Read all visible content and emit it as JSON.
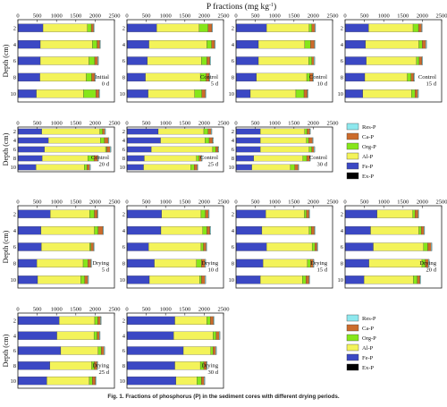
{
  "figure": {
    "title_main": "P fractions (mg kg",
    "title_sup": "-1",
    "title_end": ")",
    "ylabel": "Depth (cm)",
    "caption": "Fig. 1.  Fractions of phosphorus (P) in the sediment cores with different drying periods."
  },
  "fraction_colors": {
    "Res-P": "#8ee8ee",
    "Ca-P": "#cc6b2b",
    "Org-P": "#86e61a",
    "Al-P": "#f3f35a",
    "Fe-P": "#3b48c4",
    "Ex-P": "#000000"
  },
  "chart_data": {
    "type": "bar",
    "orientation": "horizontal",
    "stacked": true,
    "x_unit": "mg kg-1",
    "xlim": [
      0,
      2500
    ],
    "x_ticks": [
      "0",
      "500",
      "1000",
      "1500",
      "2000",
      "2500"
    ],
    "depths": [
      "2",
      "4",
      "6",
      "8",
      "10"
    ],
    "fraction_order": [
      "Ex-P",
      "Fe-P",
      "Al-P",
      "Org-P",
      "Ca-P",
      "Res-P"
    ],
    "legend_labels": [
      "Res-P",
      "Ca-P",
      "Org-P",
      "Al-P",
      "Fe-P",
      "Ex-P"
    ],
    "panels": [
      {
        "label1": "Initial",
        "label2": "0 d",
        "data": [
          [
            10,
            640,
            1150,
            100,
            60,
            20
          ],
          [
            10,
            570,
            1350,
            120,
            70,
            20
          ],
          [
            10,
            570,
            1260,
            150,
            80,
            20
          ],
          [
            10,
            560,
            1200,
            140,
            80,
            20
          ],
          [
            10,
            470,
            1220,
            320,
            80,
            20
          ]
        ]
      },
      {
        "label1": "Control",
        "label2": "5 d",
        "data": [
          [
            10,
            760,
            1100,
            230,
            100,
            20
          ],
          [
            10,
            560,
            1500,
            120,
            80,
            20
          ],
          [
            10,
            520,
            1400,
            140,
            80,
            20
          ],
          [
            10,
            470,
            1420,
            150,
            80,
            20
          ],
          [
            10,
            540,
            1200,
            190,
            90,
            20
          ]
        ]
      },
      {
        "label1": "Control",
        "label2": "10 d",
        "data": [
          [
            10,
            780,
            1100,
            70,
            80,
            20
          ],
          [
            10,
            570,
            1200,
            150,
            100,
            20
          ],
          [
            10,
            570,
            1300,
            80,
            60,
            20
          ],
          [
            10,
            520,
            1300,
            80,
            80,
            20
          ],
          [
            10,
            360,
            1180,
            210,
            90,
            20
          ]
        ]
      },
      {
        "label1": "Control",
        "label2": "15 d",
        "data": [
          [
            10,
            600,
            1150,
            140,
            80,
            20
          ],
          [
            10,
            520,
            1380,
            90,
            90,
            20
          ],
          [
            10,
            540,
            1300,
            70,
            70,
            20
          ],
          [
            10,
            500,
            1100,
            100,
            70,
            20
          ],
          [
            10,
            450,
            1260,
            90,
            70,
            20
          ]
        ]
      },
      {
        "label1": "Control",
        "label2": "20 d",
        "data": [
          [
            10,
            610,
            1500,
            70,
            60,
            20
          ],
          [
            10,
            780,
            1350,
            100,
            100,
            20
          ],
          [
            10,
            680,
            1580,
            30,
            90,
            20
          ],
          [
            10,
            620,
            1180,
            160,
            100,
            20
          ],
          [
            10,
            460,
            1250,
            70,
            70,
            20
          ]
        ]
      },
      {
        "label1": "Control",
        "label2": "25 d",
        "data": [
          [
            10,
            800,
            1180,
            110,
            80,
            20
          ],
          [
            10,
            860,
            1150,
            110,
            90,
            20
          ],
          [
            10,
            620,
            1590,
            80,
            60,
            20
          ],
          [
            10,
            440,
            1350,
            70,
            60,
            20
          ],
          [
            10,
            420,
            1220,
            90,
            80,
            20
          ]
        ]
      },
      {
        "label1": "Control",
        "label2": "30 d",
        "data": [
          [
            10,
            620,
            1150,
            60,
            70,
            20
          ],
          [
            10,
            620,
            1190,
            60,
            100,
            20
          ],
          [
            10,
            620,
            1260,
            70,
            60,
            20
          ],
          [
            10,
            450,
            1270,
            100,
            80,
            20
          ],
          [
            10,
            400,
            1000,
            110,
            90,
            20
          ]
        ]
      },
      {
        "label1": "Drying",
        "label2": "5 d",
        "data": [
          [
            10,
            830,
            1020,
            120,
            80,
            20
          ],
          [
            10,
            590,
            1380,
            100,
            120,
            20
          ],
          [
            10,
            600,
            1250,
            30,
            70,
            20
          ],
          [
            10,
            480,
            1200,
            120,
            80,
            20
          ],
          [
            10,
            500,
            1120,
            100,
            80,
            20
          ]
        ]
      },
      {
        "label1": "Drying",
        "label2": "10 d",
        "data": [
          [
            10,
            890,
            1020,
            110,
            80,
            20
          ],
          [
            10,
            870,
            1080,
            110,
            80,
            20
          ],
          [
            10,
            550,
            1360,
            60,
            70,
            20
          ],
          [
            10,
            700,
            1090,
            130,
            90,
            20
          ],
          [
            10,
            570,
            1300,
            50,
            90,
            20
          ]
        ]
      },
      {
        "label1": "Drying",
        "label2": "15 d",
        "data": [
          [
            10,
            760,
            1000,
            50,
            70,
            20
          ],
          [
            10,
            660,
            1220,
            60,
            80,
            20
          ],
          [
            10,
            780,
            1180,
            70,
            60,
            20
          ],
          [
            10,
            690,
            1150,
            80,
            70,
            20
          ],
          [
            10,
            620,
            1090,
            90,
            80,
            20
          ]
        ]
      },
      {
        "label1": "Drying",
        "label2": "20 d",
        "data": [
          [
            10,
            820,
            920,
            60,
            80,
            20
          ],
          [
            10,
            650,
            1250,
            60,
            70,
            20
          ],
          [
            10,
            720,
            1300,
            110,
            90,
            20
          ],
          [
            10,
            610,
            1370,
            90,
            80,
            20
          ],
          [
            10,
            480,
            1280,
            100,
            70,
            20
          ]
        ]
      },
      {
        "label1": "Drying",
        "label2": "25 d",
        "data": [
          [
            10,
            1060,
            920,
            80,
            70,
            20
          ],
          [
            10,
            1000,
            960,
            80,
            60,
            20
          ],
          [
            10,
            1100,
            970,
            80,
            70,
            20
          ],
          [
            10,
            820,
            1080,
            70,
            70,
            20
          ],
          [
            10,
            740,
            1100,
            80,
            80,
            20
          ]
        ]
      },
      {
        "label1": "Drying",
        "label2": "30 d",
        "data": [
          [
            10,
            1230,
            830,
            90,
            80,
            20
          ],
          [
            10,
            1200,
            1020,
            80,
            80,
            20
          ],
          [
            10,
            1450,
            710,
            60,
            70,
            20
          ],
          [
            10,
            1230,
            660,
            90,
            70,
            20
          ],
          [
            10,
            1260,
            540,
            120,
            70,
            20
          ]
        ]
      }
    ]
  }
}
